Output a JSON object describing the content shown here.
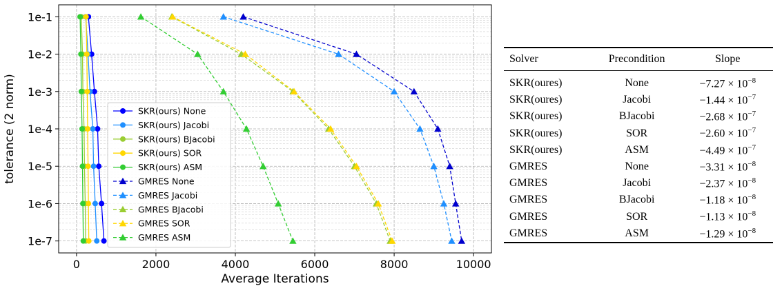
{
  "chart_data": {
    "type": "line",
    "xlabel": "Average Iterations",
    "ylabel": "tolerance (2 norm)",
    "xlim": [
      -450,
      10450
    ],
    "x_ticks": [
      0,
      2000,
      4000,
      6000,
      8000,
      10000
    ],
    "y_categories": [
      "1e-1",
      "1e-2",
      "1e-3",
      "1e-4",
      "1e-5",
      "1e-6",
      "1e-7"
    ],
    "y_scale": "log",
    "grid": true,
    "legend_position": "center-left",
    "series": [
      {
        "name": "SKR(ours) None",
        "color": "#0000ff",
        "marker": "circle",
        "dash": "solid",
        "x": [
          300,
          380,
          450,
          530,
          560,
          630,
          690
        ]
      },
      {
        "name": "SKR(ours) Jacobi",
        "color": "#1f8fff",
        "marker": "circle",
        "dash": "solid",
        "x": [
          230,
          290,
          340,
          410,
          430,
          470,
          510
        ]
      },
      {
        "name": "SKR(ours) BJacobi",
        "color": "#9acd32",
        "marker": "circle",
        "dash": "solid",
        "x": [
          120,
          150,
          160,
          190,
          200,
          220,
          230
        ]
      },
      {
        "name": "SKR(ours) SOR",
        "color": "#ffd700",
        "marker": "circle",
        "dash": "solid",
        "x": [
          240,
          260,
          270,
          280,
          290,
          300,
          310
        ]
      },
      {
        "name": "SKR(ours) ASM",
        "color": "#32cd32",
        "marker": "circle",
        "dash": "solid",
        "x": [
          90,
          110,
          120,
          140,
          150,
          160,
          170
        ]
      },
      {
        "name": "GMRES None",
        "color": "#0000cd",
        "marker": "triangle",
        "dash": "dashed",
        "x": [
          4200,
          7050,
          8500,
          9100,
          9400,
          9550,
          9700
        ]
      },
      {
        "name": "GMRES Jacobi",
        "color": "#1f8fff",
        "marker": "triangle",
        "dash": "dashed",
        "x": [
          3700,
          6600,
          8000,
          8650,
          9000,
          9250,
          9450
        ]
      },
      {
        "name": "GMRES BJacobi",
        "color": "#9acd32",
        "marker": "triangle",
        "dash": "dashed",
        "x": [
          2400,
          4150,
          5450,
          6350,
          7000,
          7550,
          7900
        ]
      },
      {
        "name": "GMRES SOR",
        "color": "#ffd700",
        "marker": "triangle",
        "dash": "dashed",
        "x": [
          2420,
          4250,
          5480,
          6400,
          7050,
          7600,
          7950
        ]
      },
      {
        "name": "GMRES ASM",
        "color": "#32cd32",
        "marker": "triangle",
        "dash": "dashed",
        "x": [
          1620,
          3050,
          3700,
          4280,
          4700,
          5080,
          5450
        ]
      }
    ]
  },
  "table": {
    "headers": [
      "Solver",
      "Precondition",
      "Slope"
    ],
    "rows": [
      {
        "solver": "SKR(oures)",
        "precondition": "None",
        "mantissa": "−7.27",
        "exponent": "−8"
      },
      {
        "solver": "SKR(oures)",
        "precondition": "Jacobi",
        "mantissa": "−1.44",
        "exponent": "−7"
      },
      {
        "solver": "SKR(oures)",
        "precondition": "BJacobi",
        "mantissa": "−2.68",
        "exponent": "−7"
      },
      {
        "solver": "SKR(oures)",
        "precondition": "SOR",
        "mantissa": "−2.60",
        "exponent": "−7"
      },
      {
        "solver": "SKR(oures)",
        "precondition": "ASM",
        "mantissa": "−4.49",
        "exponent": "−7"
      },
      {
        "solver": "GMRES",
        "precondition": "None",
        "mantissa": "−3.31",
        "exponent": "−8"
      },
      {
        "solver": "GMRES",
        "precondition": "Jacobi",
        "mantissa": "−2.37",
        "exponent": "−8"
      },
      {
        "solver": "GMRES",
        "precondition": "BJacobi",
        "mantissa": "−1.18",
        "exponent": "−8"
      },
      {
        "solver": "GMRES",
        "precondition": "SOR",
        "mantissa": "−1.13",
        "exponent": "−8"
      },
      {
        "solver": "GMRES",
        "precondition": "ASM",
        "mantissa": "−1.29",
        "exponent": "−8"
      }
    ]
  }
}
